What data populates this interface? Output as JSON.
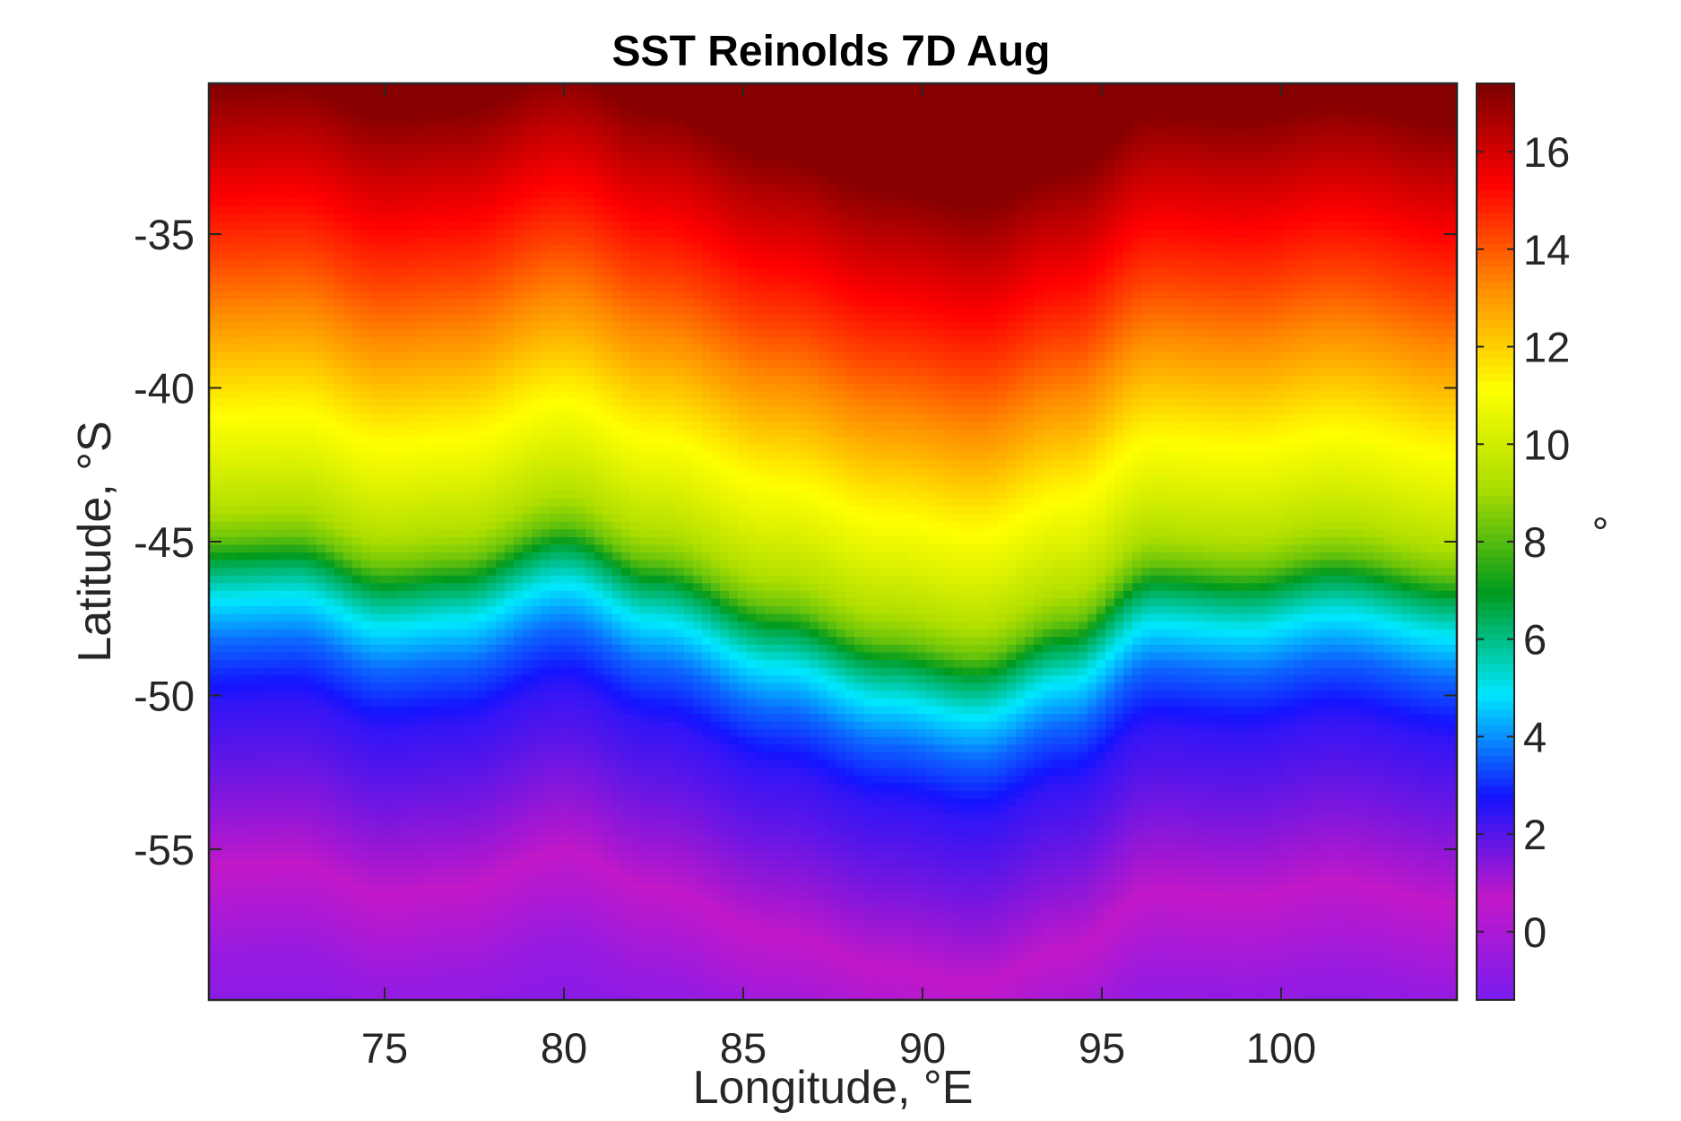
{
  "chart_data": {
    "type": "heatmap",
    "title": "SST Reinolds 7D Aug",
    "xlabel": "Longitude, °E",
    "ylabel": "Latitude, °S",
    "xlim": [
      70.1,
      104.9
    ],
    "ylim": [
      -59.9,
      -30.1
    ],
    "xticks": [
      75,
      80,
      85,
      90,
      95,
      100
    ],
    "xtick_labels": [
      "75",
      "80",
      "85",
      "90",
      "95",
      "100"
    ],
    "yticks": [
      -35,
      -40,
      -45,
      -50,
      -55
    ],
    "ytick_labels": [
      "-35",
      "-40",
      "-45",
      "-50",
      "-55"
    ],
    "colorbar": {
      "label": "°",
      "clim": [
        -1.4,
        17.4
      ],
      "ticks": [
        0,
        2,
        4,
        6,
        8,
        10,
        12,
        14,
        16
      ],
      "tick_labels": [
        "0",
        "2",
        "4",
        "6",
        "8",
        "10",
        "12",
        "14",
        "16"
      ],
      "colormap": [
        "#7a1cf0",
        "#c218c8",
        "#1414ff",
        "#00e8ff",
        "#009a1e",
        "#a8dc00",
        "#ffff00",
        "#ff8c00",
        "#ff0000",
        "#7a0000"
      ]
    },
    "grid": false,
    "front_latitude": [
      {
        "lon": 70.1,
        "lat": -45.3
      },
      {
        "lon": 72.5,
        "lat": -45.2
      },
      {
        "lon": 75,
        "lat": -46.2
      },
      {
        "lon": 77,
        "lat": -46.0
      },
      {
        "lon": 80,
        "lat": -44.8
      },
      {
        "lon": 82.5,
        "lat": -46.0
      },
      {
        "lon": 86,
        "lat": -47.5
      },
      {
        "lon": 89,
        "lat": -48.6
      },
      {
        "lon": 91.5,
        "lat": -49.1
      },
      {
        "lon": 94,
        "lat": -48.0
      },
      {
        "lon": 96.5,
        "lat": -46.1
      },
      {
        "lon": 99,
        "lat": -46.3
      },
      {
        "lon": 101.5,
        "lat": -45.8
      },
      {
        "lon": 104.9,
        "lat": -46.5
      }
    ],
    "sst_profile": [
      {
        "offset": -15,
        "sst": 17.2
      },
      {
        "offset": -12,
        "sst": 15.6
      },
      {
        "offset": -9.5,
        "sst": 14.3
      },
      {
        "offset": -7,
        "sst": 12.8
      },
      {
        "offset": -5,
        "sst": 11.5
      },
      {
        "offset": -3,
        "sst": 10.4
      },
      {
        "offset": -1.5,
        "sst": 9.4
      },
      {
        "offset": -0.4,
        "sst": 8.3
      },
      {
        "offset": 0.4,
        "sst": 6.6
      },
      {
        "offset": 1.5,
        "sst": 5.0
      },
      {
        "offset": 3,
        "sst": 3.6
      },
      {
        "offset": 5,
        "sst": 2.4
      },
      {
        "offset": 7,
        "sst": 1.8
      },
      {
        "offset": 10,
        "sst": 0.8
      },
      {
        "offset": 13,
        "sst": -0.5
      },
      {
        "offset": 16,
        "sst": -1.2
      }
    ]
  }
}
